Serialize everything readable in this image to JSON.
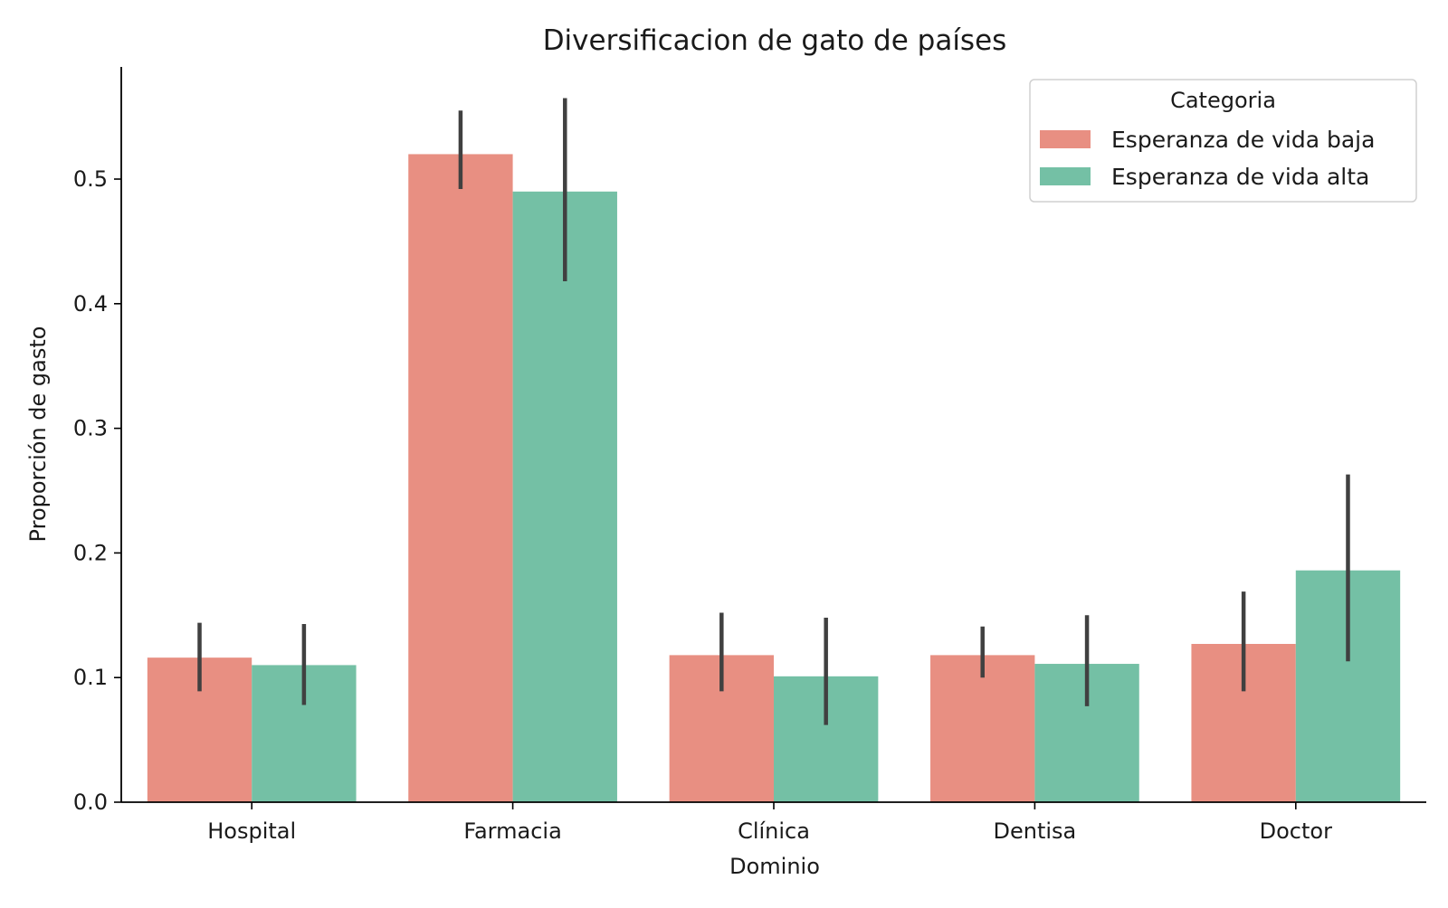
{
  "chart_data": {
    "type": "bar",
    "title": "Diversificacion de gato de países",
    "xlabel": "Dominio",
    "ylabel": "Proporción de gasto",
    "categories": [
      "Hospital",
      "Farmacia",
      "Clínica",
      "Dentisa",
      "Doctor"
    ],
    "series": [
      {
        "name": "Esperanza de vida baja",
        "color": "#e88f82",
        "values": [
          0.116,
          0.52,
          0.118,
          0.118,
          0.127
        ],
        "error_low": [
          0.089,
          0.492,
          0.089,
          0.1,
          0.089
        ],
        "error_high": [
          0.144,
          0.555,
          0.152,
          0.141,
          0.169
        ]
      },
      {
        "name": "Esperanza de vida alta",
        "color": "#74c0a5",
        "values": [
          0.11,
          0.49,
          0.101,
          0.111,
          0.186
        ],
        "error_low": [
          0.078,
          0.418,
          0.062,
          0.077,
          0.113
        ],
        "error_high": [
          0.143,
          0.565,
          0.148,
          0.15,
          0.263
        ]
      }
    ],
    "ylim": [
      0,
      0.59
    ],
    "yticks": [
      "0.0",
      "0.1",
      "0.2",
      "0.3",
      "0.4",
      "0.5"
    ],
    "legend": {
      "title": "Categoria",
      "placement": "top-right"
    },
    "grid": false,
    "error_bar_color": "#404040"
  }
}
